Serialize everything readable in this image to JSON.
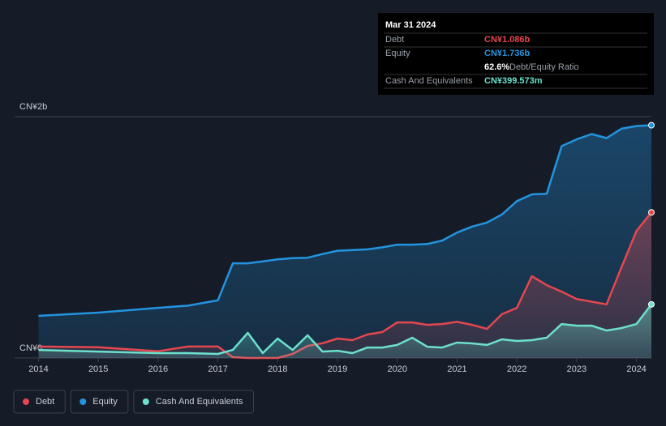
{
  "chart_data": {
    "type": "line",
    "x": [
      2014,
      2015,
      2016,
      2016.5,
      2017,
      2017.25,
      2017.5,
      2017.75,
      2018,
      2018.25,
      2018.5,
      2018.75,
      2019,
      2019.25,
      2019.5,
      2019.75,
      2020,
      2020.25,
      2020.5,
      2020.75,
      2021,
      2021.25,
      2021.5,
      2021.75,
      2022,
      2022.25,
      2022.5,
      2022.75,
      2023,
      2023.25,
      2023.5,
      2023.75,
      2024,
      2024.25
    ],
    "series": [
      {
        "name": "Debt",
        "color": "#e5474f",
        "values": [
          0.085,
          0.08,
          0.05,
          0.085,
          0.085,
          0.006,
          0,
          0,
          0,
          0.03,
          0.09,
          0.11,
          0.145,
          0.133,
          0.175,
          0.193,
          0.265,
          0.265,
          0.247,
          0.253,
          0.27,
          0.247,
          0.217,
          0.326,
          0.374,
          0.61,
          0.543,
          0.495,
          0.44,
          0.42,
          0.4,
          0.676,
          0.947,
          1.086
        ]
      },
      {
        "name": "Equity",
        "color": "#2394df",
        "values": [
          0.314,
          0.338,
          0.374,
          0.39,
          0.43,
          0.706,
          0.706,
          0.72,
          0.736,
          0.745,
          0.748,
          0.775,
          0.8,
          0.805,
          0.81,
          0.825,
          0.845,
          0.845,
          0.85,
          0.875,
          0.935,
          0.98,
          1.01,
          1.07,
          1.17,
          1.22,
          1.225,
          1.58,
          1.63,
          1.67,
          1.64,
          1.71,
          1.73,
          1.736
        ]
      },
      {
        "name": "Cash And Equivalents",
        "color": "#6de0cd",
        "values": [
          0.06,
          0.048,
          0.036,
          0.036,
          0.03,
          0.06,
          0.187,
          0.036,
          0.145,
          0.06,
          0.169,
          0.048,
          0.054,
          0.036,
          0.078,
          0.078,
          0.097,
          0.151,
          0.084,
          0.078,
          0.115,
          0.109,
          0.097,
          0.139,
          0.127,
          0.133,
          0.151,
          0.253,
          0.241,
          0.241,
          0.205,
          0.223,
          0.253,
          0.3996
        ]
      }
    ],
    "xlim": [
      2013.6,
      2024.25
    ],
    "xticks": [
      2014,
      2015,
      2016,
      2017,
      2018,
      2019,
      2020,
      2021,
      2022,
      2023,
      2024
    ],
    "ylim": [
      0,
      1.8
    ],
    "yticks": [
      {
        "value": 0,
        "label": "CN¥0"
      },
      {
        "value": 1.8,
        "label": "CN¥2b"
      }
    ],
    "legend": "bottom-left",
    "tooltip": {
      "date": "Mar 31 2024",
      "rows": [
        {
          "label": "Debt",
          "value": "CN¥1.086b"
        },
        {
          "label": "Equity",
          "value": "CN¥1.736b"
        },
        {
          "ratio": "62.6%",
          "label": "Debt/Equity Ratio"
        },
        {
          "label": "Cash And Equivalents",
          "value": "CN¥399.573m"
        }
      ]
    }
  }
}
